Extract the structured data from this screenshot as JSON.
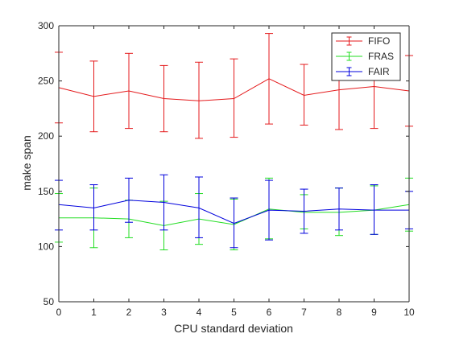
{
  "chart_data": {
    "type": "line",
    "title": "",
    "xlabel": "CPU standard deviation",
    "ylabel": "make span",
    "xlim": [
      0,
      10
    ],
    "ylim": [
      50,
      300
    ],
    "xticks": [
      0,
      1,
      2,
      3,
      4,
      5,
      6,
      7,
      8,
      9,
      10
    ],
    "yticks": [
      50,
      100,
      150,
      200,
      250,
      300
    ],
    "grid": false,
    "legend_position": "top-right",
    "error_bars": true,
    "x": [
      0,
      1,
      2,
      3,
      4,
      5,
      6,
      7,
      8,
      9,
      10
    ],
    "series": [
      {
        "name": "FIFO",
        "color": "#e41a1c",
        "values": [
          244,
          236,
          241,
          234,
          232,
          234,
          252,
          237,
          242,
          245,
          241
        ],
        "err_low": [
          212,
          204,
          207,
          204,
          198,
          199,
          211,
          210,
          206,
          207,
          209
        ],
        "err_high": [
          276,
          268,
          275,
          264,
          267,
          270,
          293,
          265,
          279,
          281,
          273
        ]
      },
      {
        "name": "FRAS",
        "color": "#22dd22",
        "values": [
          126,
          126,
          125,
          119,
          125,
          120,
          134,
          131,
          131,
          133,
          138
        ],
        "err_low": [
          104,
          99,
          108,
          97,
          102,
          97,
          107,
          116,
          110,
          111,
          114
        ],
        "err_high": [
          148,
          153,
          142,
          141,
          148,
          143,
          162,
          147,
          153,
          155,
          162
        ]
      },
      {
        "name": "FAIR",
        "color": "#0000dd",
        "values": [
          138,
          135,
          142,
          140,
          135,
          121,
          133,
          132,
          134,
          133,
          133
        ],
        "err_low": [
          115,
          115,
          122,
          115,
          108,
          99,
          106,
          112,
          115,
          111,
          116
        ],
        "err_high": [
          160,
          156,
          162,
          165,
          163,
          144,
          160,
          152,
          153,
          156,
          150
        ]
      }
    ]
  }
}
